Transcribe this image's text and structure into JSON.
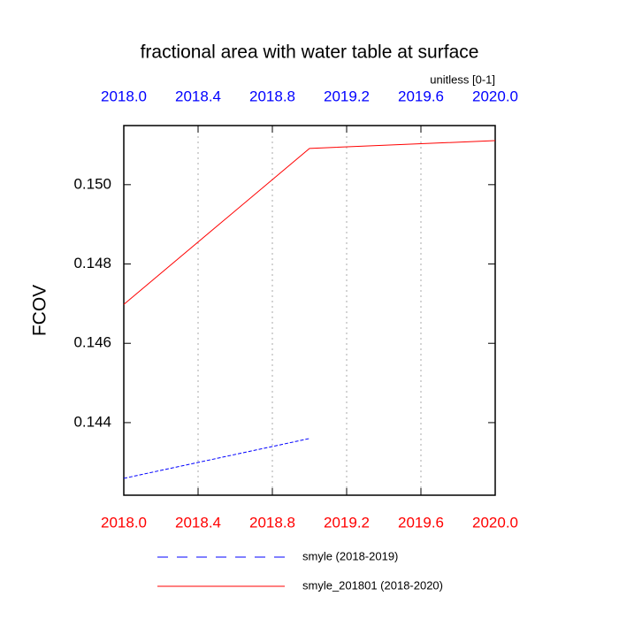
{
  "chart_data": {
    "type": "line",
    "title": "fractional area with water table at surface",
    "subtitle": "unitless [0-1]",
    "ylabel": "FCOV",
    "xlim": [
      2018.0,
      2020.0
    ],
    "xticks": [
      {
        "value": 2018.0,
        "label": "2018.0"
      },
      2018.4,
      2018.8,
      2019.2,
      2019.6,
      {
        "value": 2020.0,
        "label": "2020.0"
      }
    ],
    "top_axis_color": "#0000ff",
    "bottom_axis_color": "#ff0000",
    "ylim": [
      0.14217,
      0.15149
    ],
    "yticks": [
      0.144,
      0.146,
      0.148,
      {
        "value": 0.15,
        "label": "0.150"
      }
    ],
    "grid": "x",
    "series": [
      {
        "name": "smyle (2018-2019)",
        "color": "#0000ff",
        "dash": true,
        "x": [
          2018.0,
          2019.0
        ],
        "values": [
          0.142595,
          0.143599
        ]
      },
      {
        "name": "smyle_201801 (2018-2020)",
        "color": "#ff0000",
        "dash": false,
        "x": [
          2018.0,
          2019.0,
          2020.0
        ],
        "values": [
          0.146981,
          0.150914,
          0.15111
        ]
      }
    ]
  }
}
